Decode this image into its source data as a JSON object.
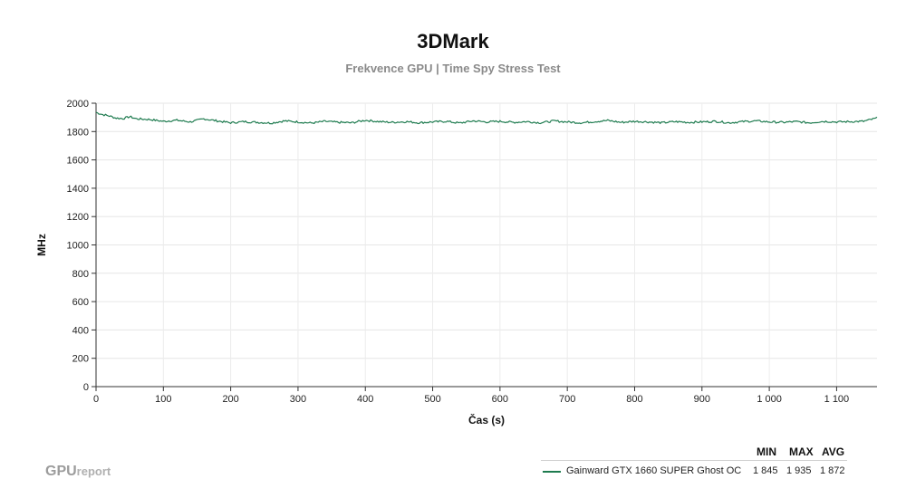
{
  "chart_data": {
    "type": "line",
    "title": "3DMark",
    "subtitle": "Frekvence GPU | Time Spy Stress Test",
    "xlabel": "Čas (s)",
    "ylabel": "MHz",
    "xlim": [
      0,
      1160
    ],
    "ylim": [
      0,
      2000
    ],
    "x_ticks": [
      0,
      100,
      200,
      300,
      400,
      500,
      600,
      700,
      800,
      900,
      1000,
      1100
    ],
    "x_tick_labels": [
      "0",
      "100",
      "200",
      "300",
      "400",
      "500",
      "600",
      "700",
      "800",
      "900",
      "1 000",
      "1 100"
    ],
    "y_ticks": [
      0,
      200,
      400,
      600,
      800,
      1000,
      1200,
      1400,
      1600,
      1800,
      2000
    ],
    "y_tick_labels": [
      "0",
      "200",
      "400",
      "600",
      "800",
      "1000",
      "1200",
      "1400",
      "1600",
      "1800",
      "2000"
    ],
    "grid": true,
    "legend_position": "bottom-right",
    "series": [
      {
        "name": "Gainward GTX 1660 SUPER Ghost OC",
        "color": "#1e7b4f",
        "x": [
          0,
          10,
          20,
          30,
          40,
          50,
          60,
          80,
          100,
          120,
          140,
          160,
          180,
          200,
          220,
          240,
          260,
          280,
          300,
          320,
          340,
          360,
          380,
          400,
          420,
          440,
          460,
          480,
          500,
          520,
          540,
          560,
          580,
          600,
          620,
          640,
          660,
          680,
          700,
          720,
          740,
          760,
          780,
          800,
          820,
          840,
          860,
          880,
          900,
          920,
          940,
          960,
          980,
          1000,
          1020,
          1040,
          1060,
          1080,
          1100,
          1120,
          1140,
          1160
        ],
        "y": [
          1935,
          1920,
          1910,
          1895,
          1892,
          1905,
          1890,
          1885,
          1872,
          1880,
          1868,
          1890,
          1875,
          1862,
          1870,
          1865,
          1860,
          1875,
          1868,
          1860,
          1872,
          1865,
          1862,
          1880,
          1870,
          1865,
          1870,
          1862,
          1868,
          1872,
          1860,
          1875,
          1868,
          1872,
          1865,
          1870,
          1862,
          1875,
          1868,
          1862,
          1870,
          1878,
          1865,
          1872,
          1868,
          1862,
          1870,
          1865,
          1868,
          1872,
          1862,
          1870,
          1875,
          1868,
          1865,
          1870,
          1862,
          1872,
          1868,
          1870,
          1872,
          1895
        ]
      }
    ],
    "legend_table": {
      "headers": [
        "MIN",
        "MAX",
        "AVG"
      ],
      "rows": [
        {
          "name": "Gainward GTX 1660 SUPER Ghost OC",
          "min": "1 845",
          "max": "1 935",
          "avg": "1 872"
        }
      ]
    }
  },
  "brand": {
    "strong": "GPU",
    "light": "report"
  }
}
